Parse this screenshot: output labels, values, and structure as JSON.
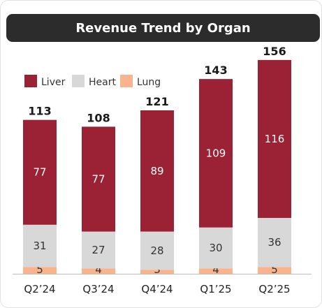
{
  "chart_data": {
    "type": "bar",
    "stacked": true,
    "title": "Revenue Trend by Organ",
    "categories": [
      "Q2’24",
      "Q3’24",
      "Q4’24",
      "Q1’25",
      "Q2’25"
    ],
    "series": [
      {
        "name": "Lung",
        "values": [
          5,
          4,
          3,
          4,
          5
        ],
        "color": "#f9b48e"
      },
      {
        "name": "Heart",
        "values": [
          31,
          27,
          28,
          30,
          36
        ],
        "color": "#d8d8d8"
      },
      {
        "name": "Liver",
        "values": [
          77,
          77,
          89,
          109,
          116
        ],
        "color": "#9b2235"
      }
    ],
    "totals": [
      113,
      108,
      121,
      143,
      156
    ],
    "legend": [
      "Liver",
      "Heart",
      "Lung"
    ],
    "legend_position": "top-left",
    "grid": false
  },
  "label_colors": {
    "Liver": "#ffffff",
    "Heart": "#333333",
    "Lung": "#333333"
  }
}
